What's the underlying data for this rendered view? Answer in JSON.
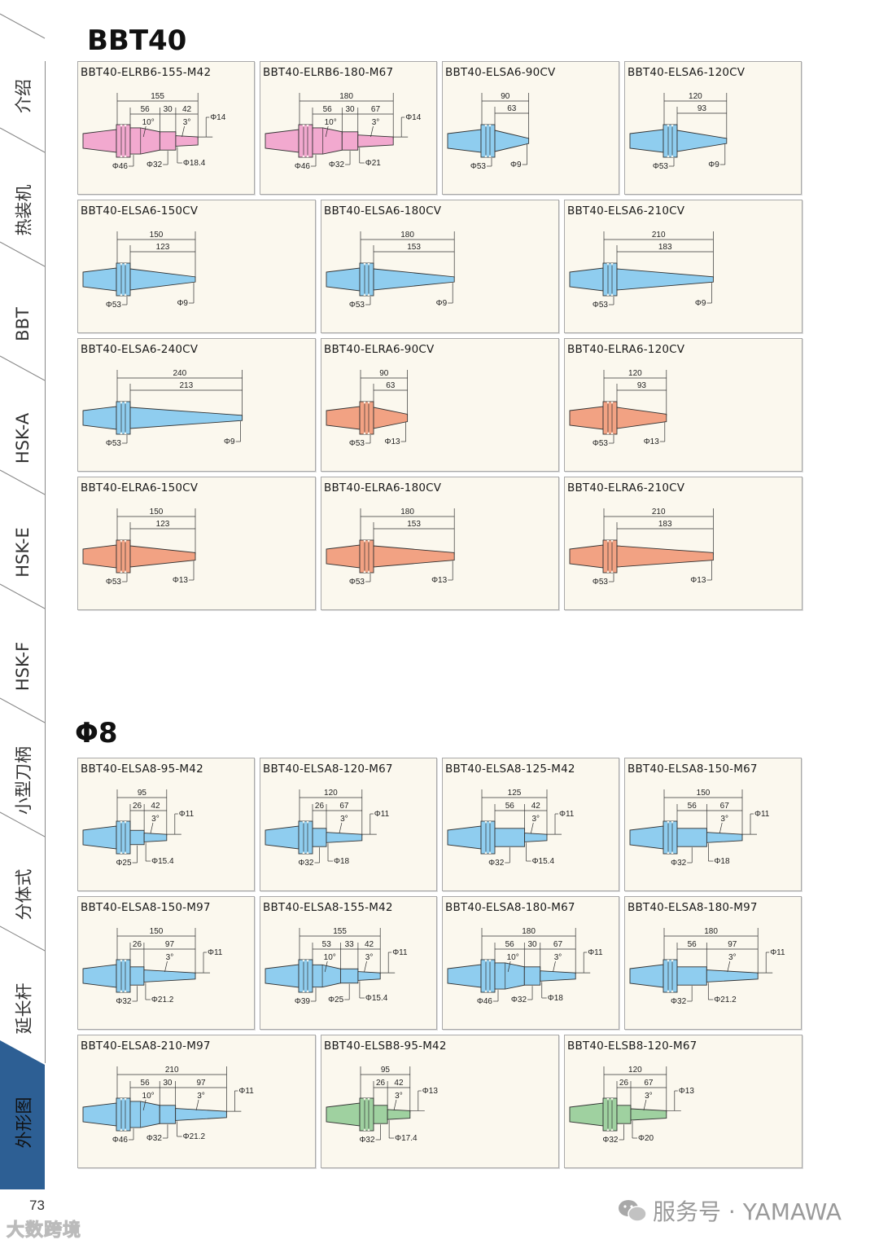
{
  "sidebar": {
    "tabs": [
      "介绍",
      "热装机",
      "BBT",
      "HSK-A",
      "HSK-E",
      "HSK-F",
      "小型刀柄",
      "分体式",
      "延长杆",
      "外形图"
    ],
    "active_index": 9,
    "active_color": "#2d5f94"
  },
  "colors": {
    "pink": "#f2a9cf",
    "blue": "#8fcdef",
    "salmon": "#f2a283",
    "green": "#9fd1a0"
  },
  "sections": [
    {
      "heading": "BBT40",
      "rows": [
        {
          "cols": 4,
          "cards": [
            {
              "title": "BBT40-ELRB6-155-M42",
              "color": "pink",
              "kind": "rb",
              "total": "155",
              "steps": [
                "56",
                "30",
                "42"
              ],
              "angles": [
                "10°",
                "3°"
              ],
              "tip": "Φ14",
              "bottom": [
                "Φ46",
                "Φ32",
                "Φ18.4"
              ]
            },
            {
              "title": "BBT40-ELRB6-180-M67",
              "color": "pink",
              "kind": "rb",
              "total": "180",
              "steps": [
                "56",
                "30",
                "67"
              ],
              "angles": [
                "10°",
                "3°"
              ],
              "tip": "Φ14",
              "bottom": [
                "Φ46",
                "Φ32",
                "Φ21"
              ]
            },
            {
              "title": "BBT40-ELSA6-90CV",
              "color": "blue",
              "kind": "cone",
              "total": "90",
              "steps": [
                "63"
              ],
              "angles": [],
              "tip": "",
              "bottom": [
                "Φ53",
                "Φ9"
              ]
            },
            {
              "title": "BBT40-ELSA6-120CV",
              "color": "blue",
              "kind": "cone",
              "total": "120",
              "steps": [
                "93"
              ],
              "angles": [],
              "tip": "",
              "bottom": [
                "Φ53",
                "Φ9"
              ]
            }
          ]
        },
        {
          "cols": 3,
          "cards": [
            {
              "title": "BBT40-ELSA6-150CV",
              "color": "blue",
              "kind": "cone",
              "total": "150",
              "steps": [
                "123"
              ],
              "angles": [],
              "tip": "",
              "bottom": [
                "Φ53",
                "Φ9"
              ]
            },
            {
              "title": "BBT40-ELSA6-180CV",
              "color": "blue",
              "kind": "cone",
              "total": "180",
              "steps": [
                "153"
              ],
              "angles": [],
              "tip": "",
              "bottom": [
                "Φ53",
                "Φ9"
              ]
            },
            {
              "title": "BBT40-ELSA6-210CV",
              "color": "blue",
              "kind": "cone",
              "total": "210",
              "steps": [
                "183"
              ],
              "angles": [],
              "tip": "",
              "bottom": [
                "Φ53",
                "Φ9"
              ]
            }
          ]
        },
        {
          "cols": 3,
          "cards": [
            {
              "title": "BBT40-ELSA6-240CV",
              "color": "blue",
              "kind": "cone",
              "total": "240",
              "steps": [
                "213"
              ],
              "angles": [],
              "tip": "",
              "bottom": [
                "Φ53",
                "Φ9"
              ]
            },
            {
              "title": "BBT40-ELRA6-90CV",
              "color": "salmon",
              "kind": "cone",
              "total": "90",
              "steps": [
                "63"
              ],
              "angles": [],
              "tip": "",
              "bottom": [
                "Φ53",
                "Φ13"
              ]
            },
            {
              "title": "BBT40-ELRA6-120CV",
              "color": "salmon",
              "kind": "cone",
              "total": "120",
              "steps": [
                "93"
              ],
              "angles": [],
              "tip": "",
              "bottom": [
                "Φ53",
                "Φ13"
              ]
            }
          ]
        },
        {
          "cols": 3,
          "cards": [
            {
              "title": "BBT40-ELRA6-150CV",
              "color": "salmon",
              "kind": "cone",
              "total": "150",
              "steps": [
                "123"
              ],
              "angles": [],
              "tip": "",
              "bottom": [
                "Φ53",
                "Φ13"
              ]
            },
            {
              "title": "BBT40-ELRA6-180CV",
              "color": "salmon",
              "kind": "cone",
              "total": "180",
              "steps": [
                "153"
              ],
              "angles": [],
              "tip": "",
              "bottom": [
                "Φ53",
                "Φ13"
              ]
            },
            {
              "title": "BBT40-ELRA6-210CV",
              "color": "salmon",
              "kind": "cone",
              "total": "210",
              "steps": [
                "183"
              ],
              "angles": [],
              "tip": "",
              "bottom": [
                "Φ53",
                "Φ13"
              ]
            }
          ]
        }
      ]
    },
    {
      "heading": "Φ8",
      "rows": [
        {
          "cols": 4,
          "cards": [
            {
              "title": "BBT40-ELSA8-95-M42",
              "color": "blue",
              "kind": "step",
              "total": "95",
              "steps": [
                "26",
                "42"
              ],
              "angles": [
                "3°"
              ],
              "tip": "Φ11",
              "bottom": [
                "Φ25",
                "Φ15.4"
              ]
            },
            {
              "title": "BBT40-ELSA8-120-M67",
              "color": "blue",
              "kind": "step",
              "total": "120",
              "steps": [
                "26",
                "67"
              ],
              "angles": [
                "3°"
              ],
              "tip": "Φ11",
              "bottom": [
                "Φ32",
                "Φ18"
              ]
            },
            {
              "title": "BBT40-ELSA8-125-M42",
              "color": "blue",
              "kind": "step",
              "total": "125",
              "steps": [
                "56",
                "42"
              ],
              "angles": [
                "3°"
              ],
              "tip": "Φ11",
              "bottom": [
                "Φ32",
                "Φ15.4"
              ]
            },
            {
              "title": "BBT40-ELSA8-150-M67",
              "color": "blue",
              "kind": "step",
              "total": "150",
              "steps": [
                "56",
                "67"
              ],
              "angles": [
                "3°"
              ],
              "tip": "Φ11",
              "bottom": [
                "Φ32",
                "Φ18"
              ]
            }
          ]
        },
        {
          "cols": 4,
          "cards": [
            {
              "title": "BBT40-ELSA8-150-M97",
              "color": "blue",
              "kind": "step",
              "total": "150",
              "steps": [
                "26",
                "97"
              ],
              "angles": [
                "3°"
              ],
              "tip": "Φ11",
              "bottom": [
                "Φ32",
                "Φ21.2"
              ]
            },
            {
              "title": "BBT40-ELSA8-155-M42",
              "color": "blue",
              "kind": "rb",
              "total": "155",
              "steps": [
                "53",
                "33",
                "42"
              ],
              "angles": [
                "10°",
                "3°"
              ],
              "tip": "Φ11",
              "bottom": [
                "Φ39",
                "Φ25",
                "Φ15.4"
              ]
            },
            {
              "title": "BBT40-ELSA8-180-M67",
              "color": "blue",
              "kind": "rb",
              "total": "180",
              "steps": [
                "56",
                "30",
                "67"
              ],
              "angles": [
                "10°",
                "3°"
              ],
              "tip": "Φ11",
              "bottom": [
                "Φ46",
                "Φ32",
                "Φ18"
              ]
            },
            {
              "title": "BBT40-ELSA8-180-M97",
              "color": "blue",
              "kind": "step",
              "total": "180",
              "steps": [
                "56",
                "97"
              ],
              "angles": [
                "3°"
              ],
              "tip": "Φ11",
              "bottom": [
                "Φ32",
                "Φ21.2"
              ]
            }
          ]
        },
        {
          "cols": 3,
          "cards": [
            {
              "title": "BBT40-ELSA8-210-M97",
              "color": "blue",
              "kind": "rb",
              "total": "210",
              "steps": [
                "56",
                "30",
                "97"
              ],
              "angles": [
                "10°",
                "3°"
              ],
              "tip": "Φ11",
              "bottom": [
                "Φ46",
                "Φ32",
                "Φ21.2"
              ]
            },
            {
              "title": "BBT40-ELSB8-95-M42",
              "color": "green",
              "kind": "step",
              "total": "95",
              "steps": [
                "26",
                "42"
              ],
              "angles": [
                "3°"
              ],
              "tip": "Φ13",
              "bottom": [
                "Φ32",
                "Φ17.4"
              ]
            },
            {
              "title": "BBT40-ELSB8-120-M67",
              "color": "green",
              "kind": "step",
              "total": "120",
              "steps": [
                "26",
                "67"
              ],
              "angles": [
                "3°"
              ],
              "tip": "Φ13",
              "bottom": [
                "Φ32",
                "Φ20"
              ]
            }
          ]
        }
      ]
    }
  ],
  "footer": {
    "page_number": "73",
    "watermark_left": "大数跨境",
    "watermark_right": "服务号 · YAMAWA"
  }
}
